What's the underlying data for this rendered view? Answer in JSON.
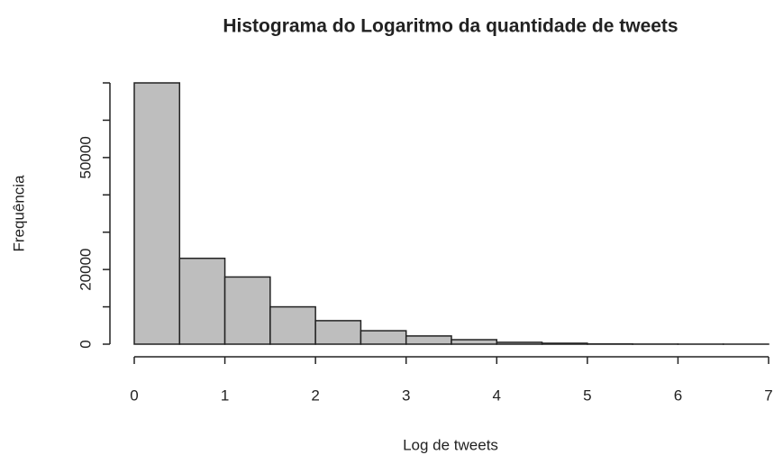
{
  "chart_data": {
    "type": "histogram",
    "title": "Histograma do Logaritmo da quantidade de tweets",
    "xlabel": "Log de tweets",
    "ylabel": "Frequência",
    "bins": [
      0,
      0.5,
      1,
      1.5,
      2,
      2.5,
      3,
      3.5,
      4,
      4.5,
      5,
      5.5,
      6,
      6.5,
      7
    ],
    "values": [
      70000,
      23000,
      18000,
      10000,
      6300,
      3600,
      2200,
      1200,
      500,
      250,
      60,
      25,
      10,
      5
    ],
    "color": "#bebebe",
    "xlim": [
      0,
      7
    ],
    "xticks": [
      0,
      1,
      2,
      3,
      4,
      5,
      6,
      7
    ],
    "ylim": [
      0,
      70000
    ],
    "yticks": [
      0,
      20000,
      50000
    ],
    "yminor_ticks": [
      10000,
      30000,
      40000,
      60000,
      70000
    ]
  }
}
